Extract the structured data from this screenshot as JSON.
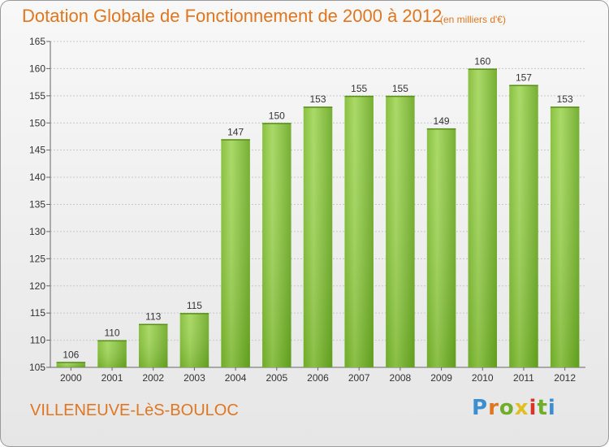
{
  "title": "Dotation Globale de Fonctionnement de 2000 à 2012",
  "subtitle": "(en milliers d'€)",
  "commune": "VILLENEUVE-LèS-BOULOC",
  "logo": {
    "text": "Proxiti"
  },
  "colors": {
    "title": "#e0761f",
    "bar_light": "#9fd355",
    "bar_dark": "#5f9e17",
    "grid": "#c8c8c8",
    "axis_text": "#333333"
  },
  "chart_data": {
    "type": "bar",
    "categories": [
      "2000",
      "2001",
      "2002",
      "2003",
      "2004",
      "2005",
      "2006",
      "2007",
      "2008",
      "2009",
      "2010",
      "2011",
      "2012"
    ],
    "values": [
      106,
      110,
      113,
      115,
      147,
      150,
      153,
      155,
      155,
      149,
      160,
      157,
      153
    ],
    "ylim": [
      105,
      165
    ],
    "yticks": [
      105,
      110,
      115,
      120,
      125,
      130,
      135,
      140,
      145,
      150,
      155,
      160,
      165
    ],
    "grid": true,
    "data_labels": true
  }
}
